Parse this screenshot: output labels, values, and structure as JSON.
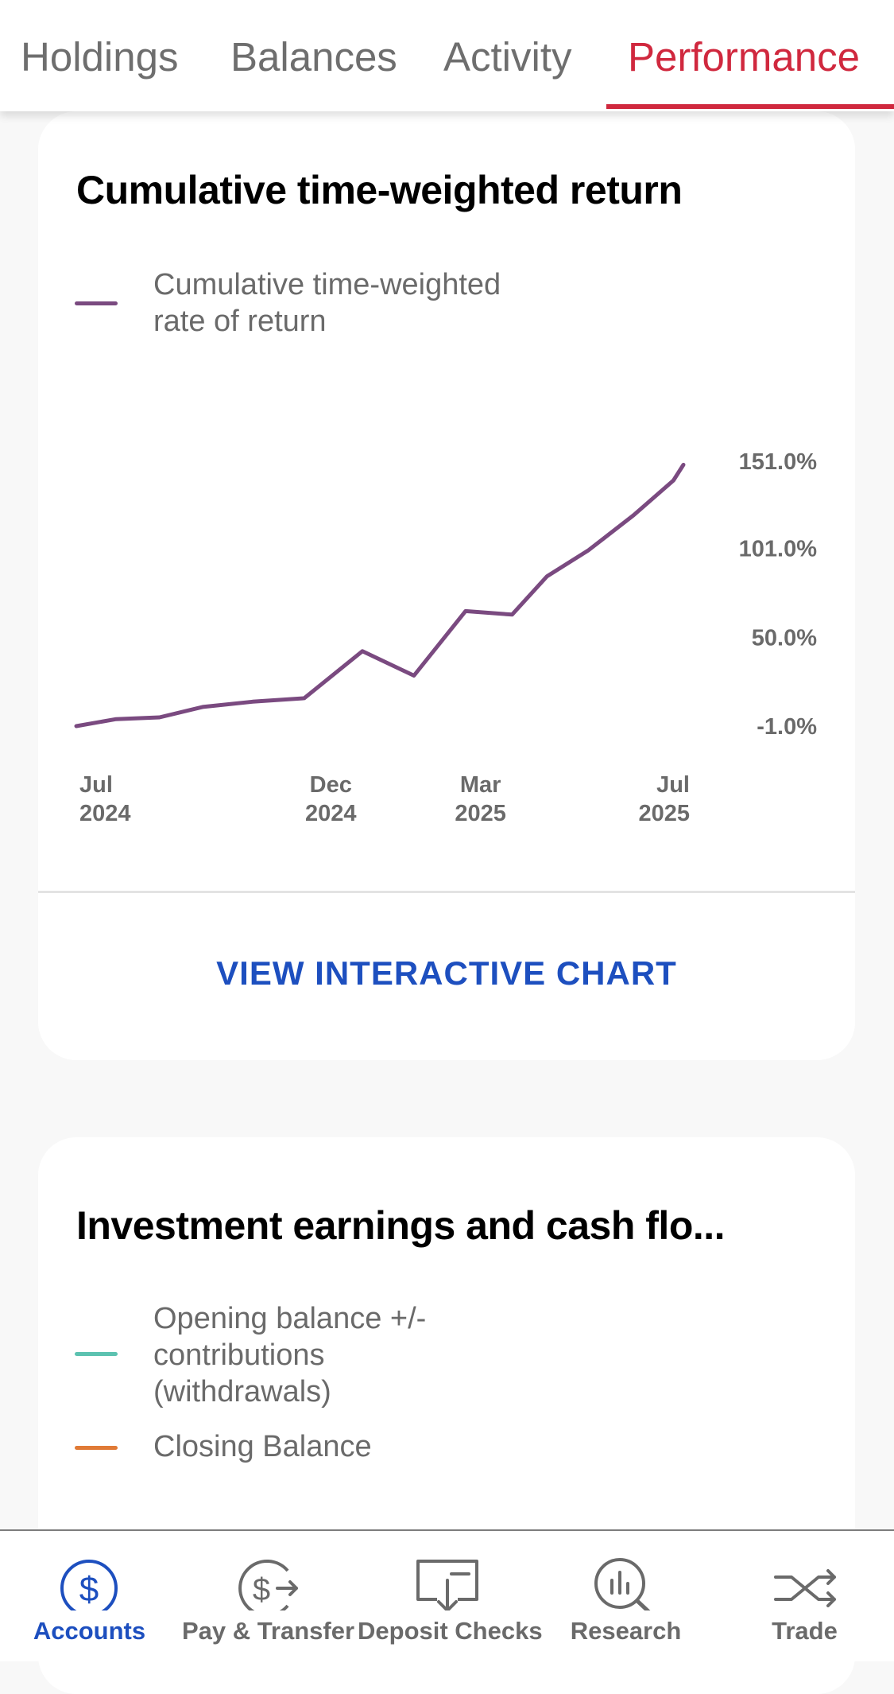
{
  "tabs": [
    {
      "label": "Holdings",
      "active": false
    },
    {
      "label": "Balances",
      "active": false
    },
    {
      "label": "Activity",
      "active": false
    },
    {
      "label": "Performance",
      "active": true
    }
  ],
  "performance_card": {
    "title": "Cumulative time-weighted return",
    "legend": [
      {
        "label": "Cumulative time-weighted rate of return",
        "color": "#7a4a80"
      }
    ],
    "cta": "VIEW INTERACTIVE CHART"
  },
  "chart_data": {
    "type": "line",
    "title": "Cumulative time-weighted return",
    "xlabel": "",
    "ylabel": "",
    "x_ticks": [
      {
        "month": "Jul",
        "year": "2024",
        "x": "2024-07-01"
      },
      {
        "month": "Dec",
        "year": "2024",
        "x": "2024-12-01"
      },
      {
        "month": "Mar",
        "year": "2025",
        "x": "2025-03-01"
      },
      {
        "month": "Jul",
        "year": "2025",
        "x": "2025-07-01"
      }
    ],
    "y_ticks": [
      "151.0%",
      "101.0%",
      "50.0%",
      "-1.0%"
    ],
    "y_tick_values": [
      151,
      101,
      50,
      -1
    ],
    "ylim": [
      -1,
      151
    ],
    "grid": false,
    "legend_position": "top-left",
    "series": [
      {
        "name": "Cumulative time-weighted rate of return",
        "color": "#7a4a80",
        "x": [
          "2024-07-01",
          "2024-07-25",
          "2024-08-20",
          "2024-09-15",
          "2024-10-15",
          "2024-11-15",
          "2024-12-20",
          "2025-01-20",
          "2025-02-20",
          "2025-03-20",
          "2025-04-10",
          "2025-05-05",
          "2025-06-01",
          "2025-06-25",
          "2025-07-01"
        ],
        "values": [
          -1.0,
          3.0,
          4.0,
          10.0,
          13.0,
          15.0,
          42.0,
          28.0,
          65.0,
          63.0,
          85.0,
          100.0,
          120.0,
          140.0,
          149.0
        ]
      }
    ]
  },
  "earnings_card": {
    "title": "Investment earnings and cash flo...",
    "legend": [
      {
        "label": "Opening balance +/- contributions (withdrawals)",
        "color": "#5cc2b0"
      },
      {
        "label": "Closing Balance",
        "color": "#e07a36"
      }
    ]
  },
  "bottom_nav": [
    {
      "label": "Accounts",
      "icon": "dollar-circle-icon",
      "active": true
    },
    {
      "label": "Pay & Transfer",
      "icon": "dollar-transfer-icon",
      "active": false
    },
    {
      "label": "Deposit Checks",
      "icon": "check-deposit-icon",
      "active": false
    },
    {
      "label": "Research",
      "icon": "research-magnifier-icon",
      "active": false
    },
    {
      "label": "Trade",
      "icon": "trade-arrows-icon",
      "active": false
    }
  ],
  "colors": {
    "accent": "#d0283e",
    "link": "#1d4fbf",
    "active_nav": "#1d4fbf"
  }
}
